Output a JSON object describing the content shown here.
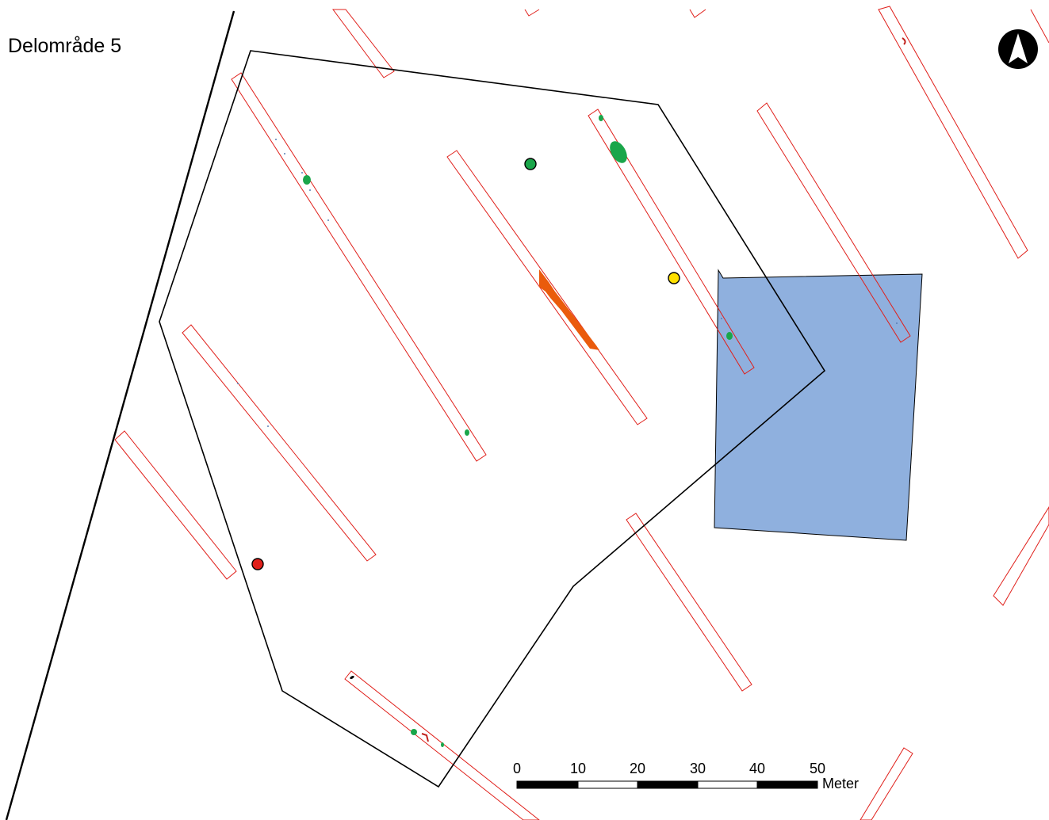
{
  "map": {
    "title": "Delområde 5",
    "north_arrow": "north-arrow-icon",
    "scale_bar": {
      "tick_labels": [
        "0",
        "10",
        "20",
        "30",
        "40",
        "50"
      ],
      "unit": "Meter"
    },
    "colors": {
      "trench_outline": "#e0201b",
      "area_boundary": "#000000",
      "blue_area": "#8fb0de",
      "green_feature": "#1aa64a",
      "orange_feature": "#ea5b0c",
      "yellow_point": "#ffe000",
      "red_point": "#e0201b",
      "green_point": "#1aa64a"
    },
    "legend_points": [
      {
        "name": "green-point-marker",
        "color": "#1aa64a"
      },
      {
        "name": "yellow-point-marker",
        "color": "#ffe000"
      },
      {
        "name": "red-point-marker",
        "color": "#e0201b"
      }
    ]
  }
}
